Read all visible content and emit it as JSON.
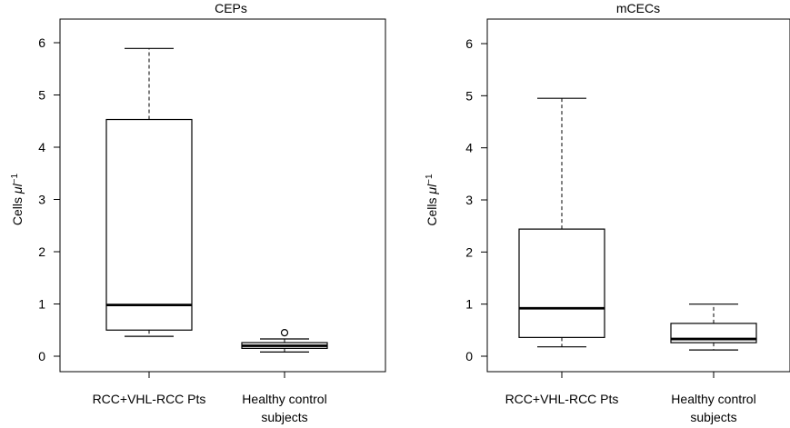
{
  "chart_data": [
    {
      "type": "box",
      "title": "CEPs",
      "ylabel": {
        "text": "Cells ",
        "mu": "μl",
        "sup": "−1"
      },
      "ylim": [
        0,
        6
      ],
      "yticks": [
        "0",
        "1",
        "2",
        "3",
        "4",
        "5",
        "6"
      ],
      "categories": [
        [
          "RCC+VHL-RCC Pts"
        ],
        [
          "Healthy control",
          "subjects"
        ]
      ],
      "boxes": [
        {
          "whisker_low": 0.38,
          "q1": 0.5,
          "median": 0.98,
          "q3": 4.53,
          "whisker_high": 5.89,
          "outliers": []
        },
        {
          "whisker_low": 0.08,
          "q1": 0.15,
          "median": 0.2,
          "q3": 0.26,
          "whisker_high": 0.33,
          "outliers": [
            0.45
          ]
        }
      ]
    },
    {
      "type": "box",
      "title": "mCECs",
      "ylabel": {
        "text": "Cells ",
        "mu": "μl",
        "sup": "−1"
      },
      "ylim": [
        0,
        6
      ],
      "yticks": [
        "0",
        "1",
        "2",
        "3",
        "4",
        "5",
        "6"
      ],
      "categories": [
        [
          "RCC+VHL-RCC Pts"
        ],
        [
          "Healthy control",
          "subjects"
        ]
      ],
      "boxes": [
        {
          "whisker_low": 0.18,
          "q1": 0.36,
          "median": 0.92,
          "q3": 2.44,
          "whisker_high": 4.95,
          "outliers": []
        },
        {
          "whisker_low": 0.12,
          "q1": 0.26,
          "median": 0.33,
          "q3": 0.63,
          "whisker_high": 1.0,
          "outliers": []
        }
      ]
    }
  ]
}
